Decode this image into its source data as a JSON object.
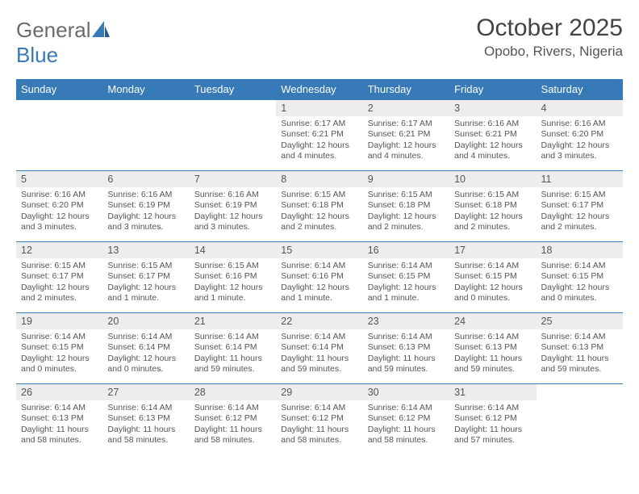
{
  "brand": {
    "part1": "General",
    "part2": "Blue"
  },
  "header": {
    "title": "October 2025",
    "location": "Opobo, Rivers, Nigeria"
  },
  "colors": {
    "header_bg": "#3879b8",
    "header_text": "#ffffff",
    "daynum_bg": "#ededed",
    "border": "#3879b8",
    "text": "#555555"
  },
  "days_of_week": [
    "Sunday",
    "Monday",
    "Tuesday",
    "Wednesday",
    "Thursday",
    "Friday",
    "Saturday"
  ],
  "weeks": [
    [
      {
        "empty": true
      },
      {
        "empty": true
      },
      {
        "empty": true
      },
      {
        "num": "1",
        "sunrise": "6:17 AM",
        "sunset": "6:21 PM",
        "daylight": "12 hours and 4 minutes."
      },
      {
        "num": "2",
        "sunrise": "6:17 AM",
        "sunset": "6:21 PM",
        "daylight": "12 hours and 4 minutes."
      },
      {
        "num": "3",
        "sunrise": "6:16 AM",
        "sunset": "6:21 PM",
        "daylight": "12 hours and 4 minutes."
      },
      {
        "num": "4",
        "sunrise": "6:16 AM",
        "sunset": "6:20 PM",
        "daylight": "12 hours and 3 minutes."
      }
    ],
    [
      {
        "num": "5",
        "sunrise": "6:16 AM",
        "sunset": "6:20 PM",
        "daylight": "12 hours and 3 minutes."
      },
      {
        "num": "6",
        "sunrise": "6:16 AM",
        "sunset": "6:19 PM",
        "daylight": "12 hours and 3 minutes."
      },
      {
        "num": "7",
        "sunrise": "6:16 AM",
        "sunset": "6:19 PM",
        "daylight": "12 hours and 3 minutes."
      },
      {
        "num": "8",
        "sunrise": "6:15 AM",
        "sunset": "6:18 PM",
        "daylight": "12 hours and 2 minutes."
      },
      {
        "num": "9",
        "sunrise": "6:15 AM",
        "sunset": "6:18 PM",
        "daylight": "12 hours and 2 minutes."
      },
      {
        "num": "10",
        "sunrise": "6:15 AM",
        "sunset": "6:18 PM",
        "daylight": "12 hours and 2 minutes."
      },
      {
        "num": "11",
        "sunrise": "6:15 AM",
        "sunset": "6:17 PM",
        "daylight": "12 hours and 2 minutes."
      }
    ],
    [
      {
        "num": "12",
        "sunrise": "6:15 AM",
        "sunset": "6:17 PM",
        "daylight": "12 hours and 2 minutes."
      },
      {
        "num": "13",
        "sunrise": "6:15 AM",
        "sunset": "6:17 PM",
        "daylight": "12 hours and 1 minute."
      },
      {
        "num": "14",
        "sunrise": "6:15 AM",
        "sunset": "6:16 PM",
        "daylight": "12 hours and 1 minute."
      },
      {
        "num": "15",
        "sunrise": "6:14 AM",
        "sunset": "6:16 PM",
        "daylight": "12 hours and 1 minute."
      },
      {
        "num": "16",
        "sunrise": "6:14 AM",
        "sunset": "6:15 PM",
        "daylight": "12 hours and 1 minute."
      },
      {
        "num": "17",
        "sunrise": "6:14 AM",
        "sunset": "6:15 PM",
        "daylight": "12 hours and 0 minutes."
      },
      {
        "num": "18",
        "sunrise": "6:14 AM",
        "sunset": "6:15 PM",
        "daylight": "12 hours and 0 minutes."
      }
    ],
    [
      {
        "num": "19",
        "sunrise": "6:14 AM",
        "sunset": "6:15 PM",
        "daylight": "12 hours and 0 minutes."
      },
      {
        "num": "20",
        "sunrise": "6:14 AM",
        "sunset": "6:14 PM",
        "daylight": "12 hours and 0 minutes."
      },
      {
        "num": "21",
        "sunrise": "6:14 AM",
        "sunset": "6:14 PM",
        "daylight": "11 hours and 59 minutes."
      },
      {
        "num": "22",
        "sunrise": "6:14 AM",
        "sunset": "6:14 PM",
        "daylight": "11 hours and 59 minutes."
      },
      {
        "num": "23",
        "sunrise": "6:14 AM",
        "sunset": "6:13 PM",
        "daylight": "11 hours and 59 minutes."
      },
      {
        "num": "24",
        "sunrise": "6:14 AM",
        "sunset": "6:13 PM",
        "daylight": "11 hours and 59 minutes."
      },
      {
        "num": "25",
        "sunrise": "6:14 AM",
        "sunset": "6:13 PM",
        "daylight": "11 hours and 59 minutes."
      }
    ],
    [
      {
        "num": "26",
        "sunrise": "6:14 AM",
        "sunset": "6:13 PM",
        "daylight": "11 hours and 58 minutes."
      },
      {
        "num": "27",
        "sunrise": "6:14 AM",
        "sunset": "6:13 PM",
        "daylight": "11 hours and 58 minutes."
      },
      {
        "num": "28",
        "sunrise": "6:14 AM",
        "sunset": "6:12 PM",
        "daylight": "11 hours and 58 minutes."
      },
      {
        "num": "29",
        "sunrise": "6:14 AM",
        "sunset": "6:12 PM",
        "daylight": "11 hours and 58 minutes."
      },
      {
        "num": "30",
        "sunrise": "6:14 AM",
        "sunset": "6:12 PM",
        "daylight": "11 hours and 58 minutes."
      },
      {
        "num": "31",
        "sunrise": "6:14 AM",
        "sunset": "6:12 PM",
        "daylight": "11 hours and 57 minutes."
      },
      {
        "empty": true
      }
    ]
  ],
  "labels": {
    "sunrise_prefix": "Sunrise: ",
    "sunset_prefix": "Sunset: ",
    "daylight_prefix": "Daylight: "
  }
}
